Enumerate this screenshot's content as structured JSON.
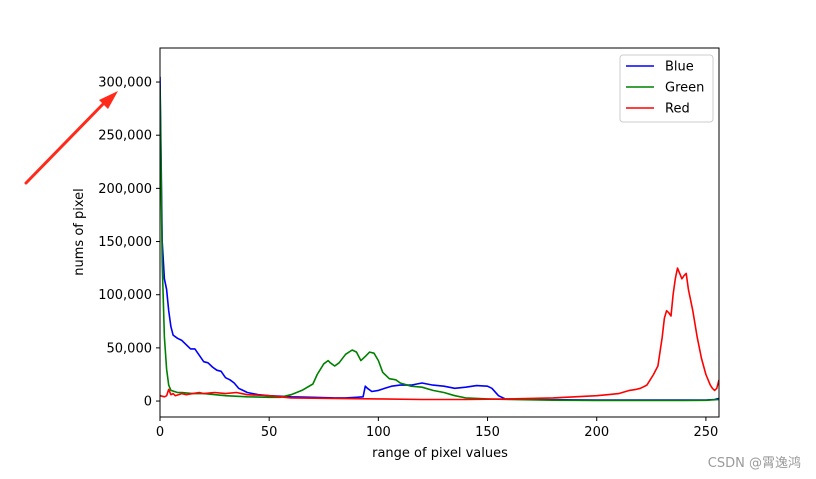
{
  "chart_data": {
    "type": "line",
    "title": "",
    "xlabel": "range of pixel values",
    "ylabel": "nums of pixel",
    "xlim": [
      0,
      256
    ],
    "ylim": [
      -15000,
      332000
    ],
    "xticks": [
      0,
      50,
      100,
      150,
      200,
      250
    ],
    "yticks": [
      0,
      50000,
      100000,
      150000,
      200000,
      250000,
      300000
    ],
    "ytick_labels": [
      "0",
      "50,000",
      "100,000",
      "150,000",
      "200,000",
      "250,000",
      "300,000"
    ],
    "grid": false,
    "legend_position": "top-right",
    "series": [
      {
        "name": "Blue",
        "color": "#0000ff",
        "points": [
          [
            0,
            305000
          ],
          [
            1,
            150000
          ],
          [
            2,
            115000
          ],
          [
            3,
            105000
          ],
          [
            4,
            85000
          ],
          [
            5,
            70000
          ],
          [
            6,
            62000
          ],
          [
            8,
            59000
          ],
          [
            10,
            57000
          ],
          [
            12,
            53000
          ],
          [
            14,
            49000
          ],
          [
            16,
            49000
          ],
          [
            18,
            43000
          ],
          [
            20,
            37000
          ],
          [
            22,
            36000
          ],
          [
            24,
            32000
          ],
          [
            26,
            29000
          ],
          [
            28,
            28000
          ],
          [
            30,
            22000
          ],
          [
            32,
            20000
          ],
          [
            34,
            17000
          ],
          [
            36,
            12000
          ],
          [
            38,
            10000
          ],
          [
            40,
            8000
          ],
          [
            45,
            6000
          ],
          [
            50,
            5000
          ],
          [
            60,
            4000
          ],
          [
            70,
            3500
          ],
          [
            80,
            3000
          ],
          [
            85,
            3000
          ],
          [
            90,
            3500
          ],
          [
            93,
            4000
          ],
          [
            94,
            14000
          ],
          [
            95,
            12000
          ],
          [
            97,
            9000
          ],
          [
            100,
            10000
          ],
          [
            103,
            12000
          ],
          [
            106,
            14000
          ],
          [
            110,
            15000
          ],
          [
            115,
            15000
          ],
          [
            120,
            17000
          ],
          [
            125,
            15000
          ],
          [
            130,
            14000
          ],
          [
            135,
            12000
          ],
          [
            140,
            13000
          ],
          [
            145,
            14500
          ],
          [
            150,
            14000
          ],
          [
            152,
            12000
          ],
          [
            155,
            5000
          ],
          [
            158,
            2000
          ],
          [
            170,
            1500
          ],
          [
            200,
            1000
          ],
          [
            250,
            1000
          ],
          [
            254,
            1500
          ],
          [
            256,
            2500
          ]
        ]
      },
      {
        "name": "Green",
        "color": "#008000",
        "points": [
          [
            0,
            295000
          ],
          [
            1,
            130000
          ],
          [
            2,
            60000
          ],
          [
            3,
            30000
          ],
          [
            4,
            15000
          ],
          [
            5,
            10000
          ],
          [
            8,
            8000
          ],
          [
            10,
            8000
          ],
          [
            15,
            7000
          ],
          [
            20,
            7000
          ],
          [
            30,
            5000
          ],
          [
            40,
            4000
          ],
          [
            50,
            3500
          ],
          [
            55,
            3500
          ],
          [
            60,
            6000
          ],
          [
            65,
            10000
          ],
          [
            70,
            16000
          ],
          [
            72,
            25000
          ],
          [
            75,
            35000
          ],
          [
            77,
            38000
          ],
          [
            78,
            36000
          ],
          [
            80,
            33000
          ],
          [
            82,
            36000
          ],
          [
            85,
            44000
          ],
          [
            88,
            48000
          ],
          [
            90,
            46000
          ],
          [
            92,
            38000
          ],
          [
            94,
            42000
          ],
          [
            96,
            46000
          ],
          [
            98,
            45000
          ],
          [
            100,
            38000
          ],
          [
            102,
            27000
          ],
          [
            105,
            21000
          ],
          [
            108,
            20000
          ],
          [
            110,
            17000
          ],
          [
            115,
            14000
          ],
          [
            120,
            13000
          ],
          [
            125,
            10000
          ],
          [
            130,
            8000
          ],
          [
            135,
            5000
          ],
          [
            140,
            3000
          ],
          [
            150,
            2000
          ],
          [
            160,
            1500
          ],
          [
            180,
            800
          ],
          [
            200,
            500
          ],
          [
            220,
            500
          ],
          [
            240,
            500
          ],
          [
            250,
            700
          ],
          [
            256,
            1500
          ]
        ]
      },
      {
        "name": "Red",
        "color": "#ff0000",
        "points": [
          [
            0,
            5000
          ],
          [
            2,
            4000
          ],
          [
            3,
            5000
          ],
          [
            4,
            11000
          ],
          [
            5,
            6000
          ],
          [
            6,
            7000
          ],
          [
            7,
            5000
          ],
          [
            10,
            7000
          ],
          [
            12,
            6000
          ],
          [
            15,
            7000
          ],
          [
            18,
            8000
          ],
          [
            20,
            7000
          ],
          [
            25,
            8000
          ],
          [
            30,
            7000
          ],
          [
            35,
            8000
          ],
          [
            40,
            6000
          ],
          [
            50,
            5000
          ],
          [
            60,
            3000
          ],
          [
            80,
            2500
          ],
          [
            100,
            2000
          ],
          [
            120,
            1500
          ],
          [
            140,
            1500
          ],
          [
            160,
            2000
          ],
          [
            170,
            2500
          ],
          [
            180,
            3000
          ],
          [
            190,
            4000
          ],
          [
            200,
            5000
          ],
          [
            205,
            6000
          ],
          [
            210,
            7000
          ],
          [
            215,
            10000
          ],
          [
            218,
            11000
          ],
          [
            220,
            12000
          ],
          [
            223,
            15000
          ],
          [
            226,
            25000
          ],
          [
            228,
            33000
          ],
          [
            230,
            60000
          ],
          [
            231,
            78000
          ],
          [
            232,
            85000
          ],
          [
            233,
            83000
          ],
          [
            234,
            80000
          ],
          [
            235,
            100000
          ],
          [
            236,
            115000
          ],
          [
            237,
            125000
          ],
          [
            238,
            120000
          ],
          [
            239,
            115000
          ],
          [
            240,
            118000
          ],
          [
            241,
            120000
          ],
          [
            242,
            105000
          ],
          [
            244,
            85000
          ],
          [
            246,
            60000
          ],
          [
            248,
            40000
          ],
          [
            250,
            25000
          ],
          [
            252,
            15000
          ],
          [
            253,
            12000
          ],
          [
            254,
            10000
          ],
          [
            255,
            12000
          ],
          [
            256,
            20000
          ]
        ]
      }
    ]
  },
  "watermark": "CSDN @霄逸鸿",
  "annotation": {
    "arrow_color": "#ff2a1a"
  }
}
